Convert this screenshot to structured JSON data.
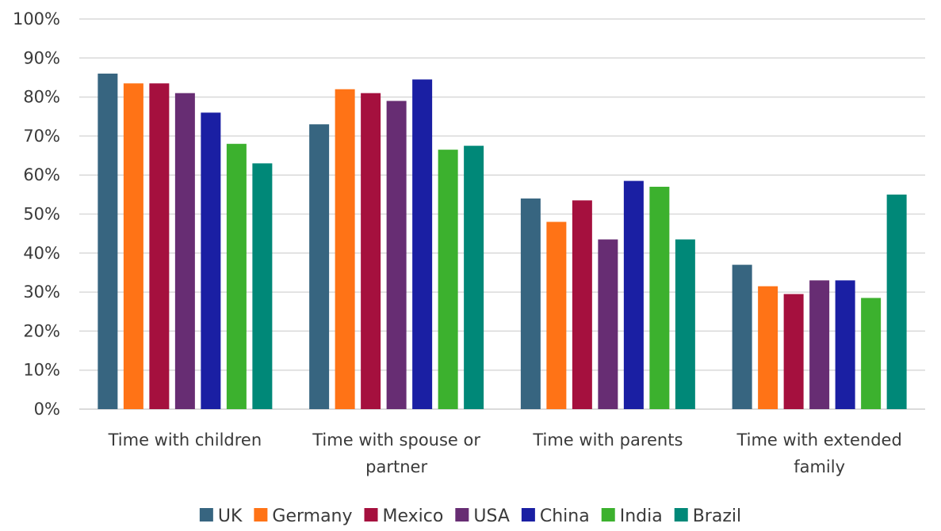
{
  "chart_data": {
    "type": "bar",
    "title": "",
    "xlabel": "",
    "ylabel": "",
    "ylim": [
      0,
      100
    ],
    "y_ticks": [
      "0%",
      "10%",
      "20%",
      "30%",
      "40%",
      "50%",
      "60%",
      "70%",
      "80%",
      "90%",
      "100%"
    ],
    "grid": true,
    "legend_position": "bottom",
    "categories": [
      [
        "Time with children"
      ],
      [
        "Time with spouse or",
        "partner"
      ],
      [
        "Time with parents"
      ],
      [
        "Time with extended",
        "family"
      ]
    ],
    "series": [
      {
        "name": "UK",
        "color": "#376580",
        "values": [
          86,
          73,
          54,
          37
        ]
      },
      {
        "name": "Germany",
        "color": "#ff7316",
        "values": [
          83.5,
          82,
          48,
          31.5
        ]
      },
      {
        "name": "Mexico",
        "color": "#a5103e",
        "values": [
          83.5,
          81,
          53.5,
          29.5
        ]
      },
      {
        "name": "USA",
        "color": "#672d73",
        "values": [
          81,
          79,
          43.5,
          33
        ]
      },
      {
        "name": "China",
        "color": "#1a1fa3",
        "values": [
          76,
          84.5,
          58.5,
          33
        ]
      },
      {
        "name": "India",
        "color": "#3cb12e",
        "values": [
          68,
          66.5,
          57,
          28.5
        ]
      },
      {
        "name": "Brazil",
        "color": "#008878",
        "values": [
          63,
          67.5,
          43.5,
          55
        ]
      }
    ]
  }
}
